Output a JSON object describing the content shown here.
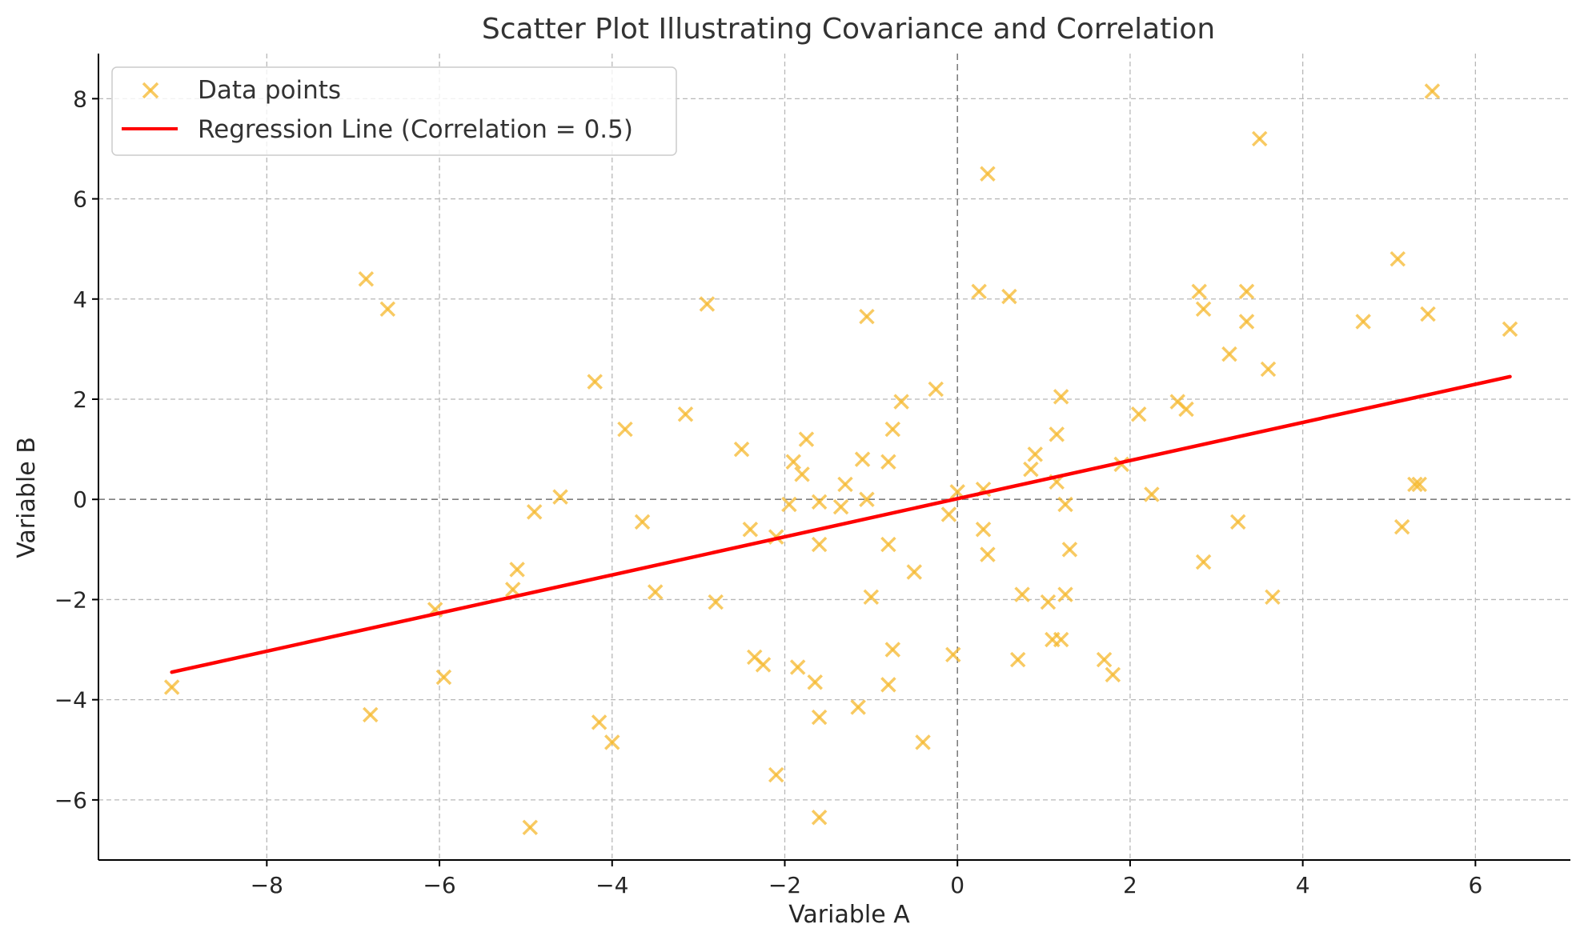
{
  "chart_data": {
    "type": "scatter",
    "title": "Scatter Plot Illustrating Covariance and Correlation",
    "xlabel": "Variable A",
    "ylabel": "Variable B",
    "xlim": [
      -9.95,
      7.1
    ],
    "ylim": [
      -7.2,
      8.9
    ],
    "x_ticks": [
      -8,
      -6,
      -4,
      -2,
      0,
      2,
      4,
      6
    ],
    "y_ticks": [
      -6,
      -4,
      -2,
      0,
      2,
      4,
      6,
      8
    ],
    "x_tick_labels": [
      "−8",
      "−6",
      "−4",
      "−2",
      "0",
      "2",
      "4",
      "6"
    ],
    "y_tick_labels": [
      "−6",
      "−4",
      "−2",
      "0",
      "2",
      "4",
      "6",
      "8"
    ],
    "grid": true,
    "zero_lines": true,
    "legend_position": "top-left",
    "colors": {
      "points": "#f5b82e",
      "line": "#ff0000"
    },
    "series": [
      {
        "name": "Data points",
        "type": "scatter",
        "marker": "x",
        "points": [
          [
            -9.1,
            -3.75
          ],
          [
            -6.85,
            4.4
          ],
          [
            -6.6,
            3.8
          ],
          [
            -6.8,
            -4.3
          ],
          [
            -6.05,
            -2.2
          ],
          [
            -5.95,
            -3.55
          ],
          [
            -5.1,
            -1.4
          ],
          [
            -5.15,
            -1.8
          ],
          [
            -4.9,
            -0.25
          ],
          [
            -4.95,
            -6.55
          ],
          [
            -4.6,
            0.05
          ],
          [
            -4.2,
            2.35
          ],
          [
            -4.15,
            -4.45
          ],
          [
            -4.0,
            -4.85
          ],
          [
            -3.85,
            1.4
          ],
          [
            -3.65,
            -0.45
          ],
          [
            -3.5,
            -1.85
          ],
          [
            -3.15,
            1.7
          ],
          [
            -2.9,
            3.9
          ],
          [
            -2.8,
            -2.05
          ],
          [
            -2.5,
            1.0
          ],
          [
            -2.4,
            -0.6
          ],
          [
            -2.35,
            -3.15
          ],
          [
            -2.25,
            -3.3
          ],
          [
            -2.1,
            -0.75
          ],
          [
            -2.1,
            -5.5
          ],
          [
            -1.95,
            -0.1
          ],
          [
            -1.9,
            0.75
          ],
          [
            -1.85,
            -3.35
          ],
          [
            -1.8,
            0.5
          ],
          [
            -1.75,
            1.2
          ],
          [
            -1.65,
            -3.65
          ],
          [
            -1.6,
            -0.05
          ],
          [
            -1.6,
            -0.9
          ],
          [
            -1.6,
            -4.35
          ],
          [
            -1.6,
            -6.35
          ],
          [
            -1.35,
            -0.15
          ],
          [
            -1.3,
            0.3
          ],
          [
            -1.15,
            -4.15
          ],
          [
            -1.1,
            0.8
          ],
          [
            -1.05,
            0.0
          ],
          [
            -1.05,
            3.65
          ],
          [
            -1.0,
            -1.95
          ],
          [
            -0.8,
            0.75
          ],
          [
            -0.8,
            -0.9
          ],
          [
            -0.8,
            -3.7
          ],
          [
            -0.75,
            1.4
          ],
          [
            -0.75,
            -3.0
          ],
          [
            -0.65,
            1.95
          ],
          [
            -0.5,
            -1.45
          ],
          [
            -0.4,
            -4.85
          ],
          [
            -0.25,
            2.2
          ],
          [
            -0.1,
            -0.3
          ],
          [
            -0.05,
            -3.1
          ],
          [
            0.0,
            0.15
          ],
          [
            0.25,
            4.15
          ],
          [
            0.3,
            0.2
          ],
          [
            0.3,
            -0.6
          ],
          [
            0.35,
            -1.1
          ],
          [
            0.35,
            6.5
          ],
          [
            0.6,
            4.05
          ],
          [
            0.7,
            -3.2
          ],
          [
            0.75,
            -1.9
          ],
          [
            0.85,
            0.6
          ],
          [
            0.9,
            0.9
          ],
          [
            1.05,
            -2.05
          ],
          [
            1.1,
            -2.8
          ],
          [
            1.15,
            1.3
          ],
          [
            1.15,
            0.35
          ],
          [
            1.2,
            -2.8
          ],
          [
            1.2,
            2.05
          ],
          [
            1.25,
            -1.9
          ],
          [
            1.25,
            -0.1
          ],
          [
            1.3,
            -1.0
          ],
          [
            1.7,
            -3.2
          ],
          [
            1.8,
            -3.5
          ],
          [
            1.9,
            0.7
          ],
          [
            2.1,
            1.7
          ],
          [
            2.25,
            0.1
          ],
          [
            2.55,
            1.95
          ],
          [
            2.65,
            1.8
          ],
          [
            2.8,
            4.15
          ],
          [
            2.85,
            3.8
          ],
          [
            2.85,
            -1.25
          ],
          [
            3.15,
            2.9
          ],
          [
            3.25,
            -0.45
          ],
          [
            3.35,
            4.15
          ],
          [
            3.35,
            3.55
          ],
          [
            3.5,
            7.2
          ],
          [
            3.6,
            2.6
          ],
          [
            3.65,
            -1.95
          ],
          [
            4.7,
            3.55
          ],
          [
            5.1,
            4.8
          ],
          [
            5.15,
            -0.55
          ],
          [
            5.3,
            0.3
          ],
          [
            5.35,
            0.3
          ],
          [
            5.45,
            3.7
          ],
          [
            5.5,
            8.15
          ],
          [
            6.4,
            3.4
          ]
        ]
      },
      {
        "name": "Regression Line (Correlation = 0.5)",
        "type": "line",
        "points": [
          [
            -9.1,
            -3.45
          ],
          [
            6.4,
            2.45
          ]
        ]
      }
    ]
  }
}
